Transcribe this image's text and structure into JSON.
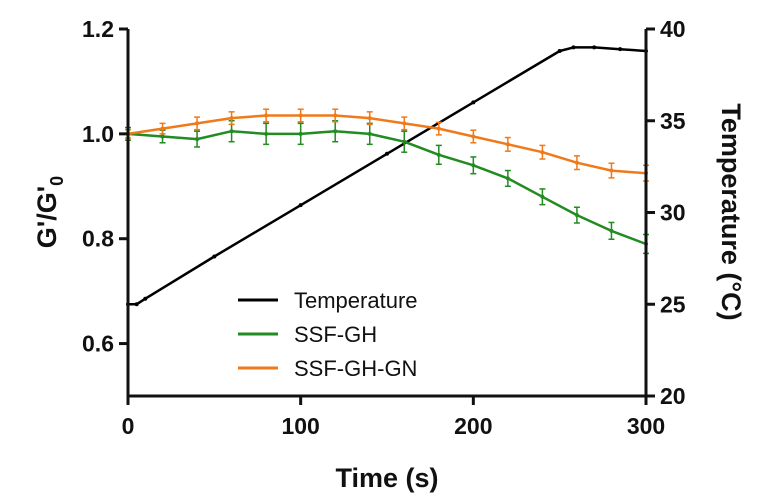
{
  "chart_data": {
    "type": "line",
    "title": "",
    "xlabel": "Time (s)",
    "ylabel_left": "G'/G'0",
    "ylabel_left_main": "G'/G'",
    "ylabel_left_sub": "0",
    "ylabel_right": "Temperature (°C)",
    "xlim": [
      0,
      300
    ],
    "ylim_left": [
      0.5,
      1.2
    ],
    "ylim_right": [
      20,
      40
    ],
    "x_ticks": [
      "0",
      "100",
      "200",
      "300"
    ],
    "x_tick_values": [
      0,
      100,
      200,
      300
    ],
    "y_left_ticks": [
      "0.6",
      "0.8",
      "1.0",
      "1.2"
    ],
    "y_left_tick_values": [
      0.6,
      0.8,
      1.0,
      1.2
    ],
    "y_right_ticks": [
      "20",
      "25",
      "30",
      "35",
      "40"
    ],
    "y_right_tick_values": [
      20,
      25,
      30,
      35,
      40
    ],
    "grid": false,
    "legend_position": "lower-center",
    "series": [
      {
        "name": "Temperature",
        "axis": "right",
        "color": "#000000",
        "x": [
          0,
          5,
          10,
          50,
          100,
          150,
          200,
          250,
          258,
          270,
          285,
          300
        ],
        "y": [
          25.0,
          25.0,
          25.3,
          27.6,
          30.4,
          33.2,
          36.0,
          38.8,
          39.0,
          39.0,
          38.9,
          38.8
        ]
      },
      {
        "name": "SSF-GH",
        "axis": "left",
        "color": "#228B22",
        "x": [
          0,
          20,
          40,
          60,
          80,
          100,
          120,
          140,
          160,
          180,
          200,
          220,
          240,
          260,
          280,
          300
        ],
        "y": [
          1.0,
          0.995,
          0.99,
          1.005,
          1.0,
          1.0,
          1.005,
          1.0,
          0.985,
          0.96,
          0.94,
          0.915,
          0.88,
          0.845,
          0.815,
          0.79
        ],
        "err": [
          0.012,
          0.012,
          0.015,
          0.02,
          0.02,
          0.02,
          0.02,
          0.02,
          0.02,
          0.018,
          0.016,
          0.015,
          0.015,
          0.015,
          0.016,
          0.018
        ]
      },
      {
        "name": "SSF-GH-GN",
        "axis": "left",
        "color": "#F07A1A",
        "x": [
          0,
          20,
          40,
          60,
          80,
          100,
          120,
          140,
          160,
          180,
          200,
          220,
          240,
          260,
          280,
          300
        ],
        "y": [
          1.0,
          1.01,
          1.02,
          1.03,
          1.035,
          1.035,
          1.035,
          1.03,
          1.02,
          1.01,
          0.995,
          0.98,
          0.965,
          0.945,
          0.93,
          0.925
        ],
        "err": [
          0.008,
          0.01,
          0.012,
          0.012,
          0.012,
          0.012,
          0.012,
          0.012,
          0.012,
          0.012,
          0.012,
          0.013,
          0.013,
          0.013,
          0.014,
          0.015
        ]
      }
    ]
  }
}
